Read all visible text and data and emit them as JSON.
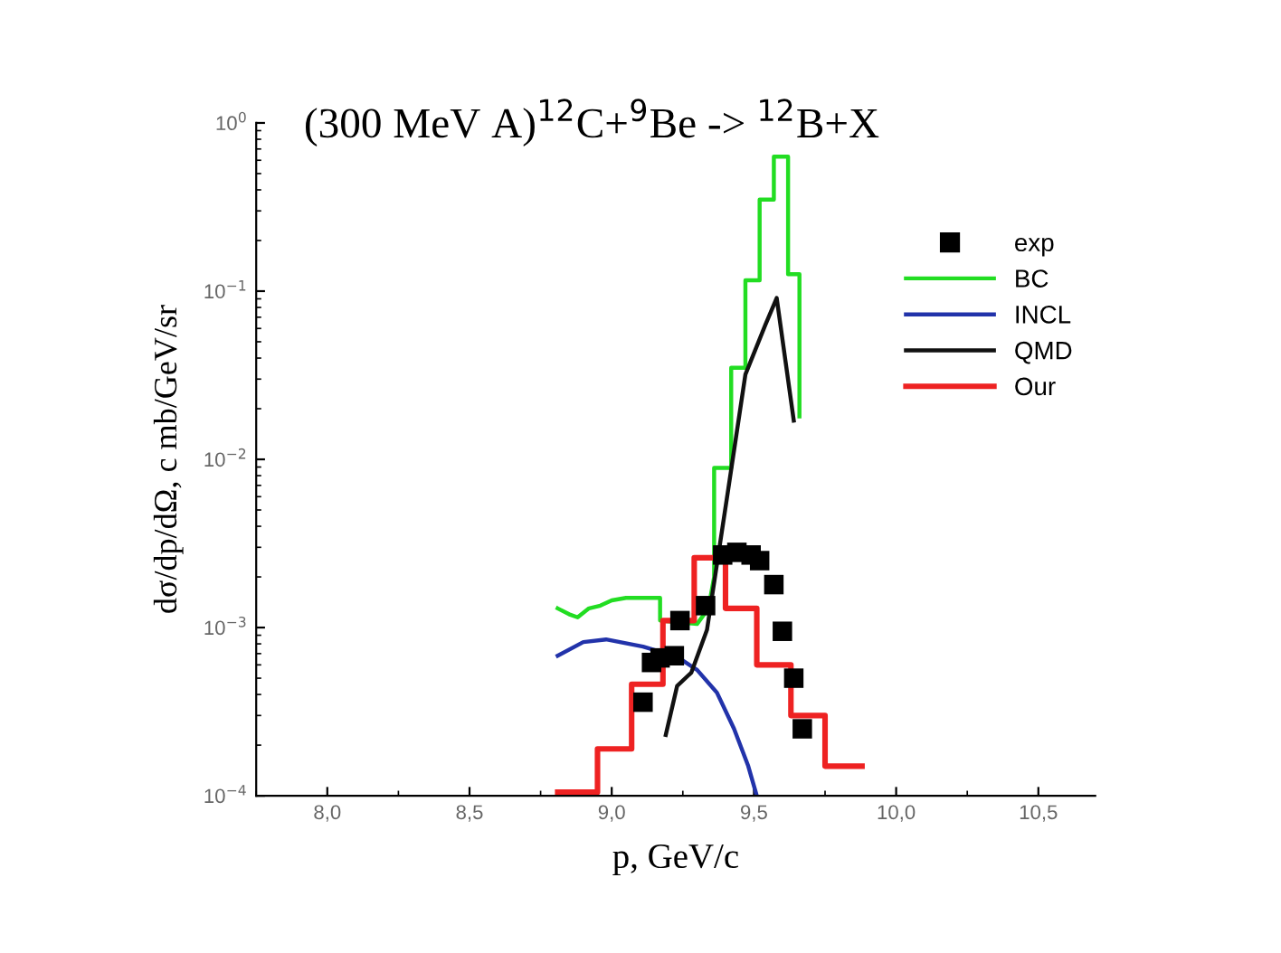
{
  "chart_data": {
    "type": "line",
    "title": "(300 MeV A)$^{12}$C+$^{9}$Be -> $^{12}$B+X",
    "xlabel": "p, GeV/c",
    "ylabel": "dσ/dp/dΩ, c mb/GeV/sr",
    "log": "y",
    "xlim": [
      7.75,
      10.7
    ],
    "ylim": [
      0.0001,
      1
    ],
    "xticks": [
      {
        "value": 8.0,
        "label": "8,0"
      },
      {
        "value": 8.5,
        "label": "8,5"
      },
      {
        "value": 9.0,
        "label": "9,0"
      },
      {
        "value": 9.5,
        "label": "9,5"
      },
      {
        "value": 10.0,
        "label": "10,0"
      },
      {
        "value": 10.5,
        "label": "10,5"
      }
    ],
    "yticks": [
      {
        "value": 0.0001,
        "label": "10$^{−4}$"
      },
      {
        "value": 0.001,
        "label": "10$^{−3}$"
      },
      {
        "value": 0.01,
        "label": "10$^{−2}$"
      },
      {
        "value": 0.1,
        "label": "10$^{−1}$"
      },
      {
        "value": 1,
        "label": "10$^{0}$"
      }
    ],
    "grid": false,
    "legend": "top right",
    "series": [
      {
        "name": "exp",
        "type": "scatter",
        "marker": "square",
        "color": "#000000",
        "x": [
          9.11,
          9.14,
          9.17,
          9.22,
          9.24,
          9.33,
          9.39,
          9.44,
          9.49,
          9.52,
          9.57,
          9.6,
          9.64,
          9.67
        ],
        "values": [
          0.00036,
          0.00062,
          0.00066,
          0.00068,
          0.0011,
          0.00135,
          0.0027,
          0.0028,
          0.0027,
          0.0025,
          0.0018,
          0.00095,
          0.0005,
          0.00025
        ]
      },
      {
        "name": "BC",
        "color": "#22dd22",
        "x": [
          8.81,
          8.85,
          8.88,
          8.92,
          8.96,
          9.0,
          9.05,
          9.1,
          9.17,
          9.17,
          9.3,
          9.34,
          9.36,
          9.36,
          9.42,
          9.42,
          9.47,
          9.47,
          9.52,
          9.52,
          9.57,
          9.57,
          9.62,
          9.62,
          9.66,
          9.66
        ],
        "values": [
          0.0013,
          0.0012,
          0.00115,
          0.0013,
          0.00135,
          0.00145,
          0.0015,
          0.0015,
          0.0015,
          0.0011,
          0.00105,
          0.0013,
          0.002,
          0.0089,
          0.0089,
          0.035,
          0.035,
          0.116,
          0.116,
          0.35,
          0.35,
          0.63,
          0.63,
          0.126,
          0.126,
          0.018
        ]
      },
      {
        "name": "INCL",
        "color": "#2233aa",
        "x": [
          8.81,
          8.9,
          8.98,
          9.11,
          9.23,
          9.3,
          9.37,
          9.43,
          9.48,
          9.51
        ],
        "values": [
          0.00068,
          0.00082,
          0.00085,
          0.00077,
          0.00067,
          0.00056,
          0.00041,
          0.00025,
          0.00015,
          0.0001
        ]
      },
      {
        "name": "QMD",
        "color": "#111111",
        "x": [
          9.19,
          9.23,
          9.28,
          9.335,
          9.41,
          9.47,
          9.54,
          9.58,
          9.64
        ],
        "values": [
          0.00023,
          0.00045,
          0.00054,
          0.00097,
          0.0067,
          0.032,
          0.063,
          0.091,
          0.017
        ]
      },
      {
        "name": "Our",
        "type": "step",
        "color": "#ee2222",
        "x": [
          8.81,
          8.95,
          9.07,
          9.18,
          9.29,
          9.4,
          9.51,
          9.63,
          9.75,
          9.88
        ],
        "values": [
          0.000105,
          0.00019,
          0.00046,
          0.0011,
          0.0026,
          0.0013,
          0.0006,
          0.0003,
          0.00015,
          0.00015
        ]
      }
    ]
  }
}
